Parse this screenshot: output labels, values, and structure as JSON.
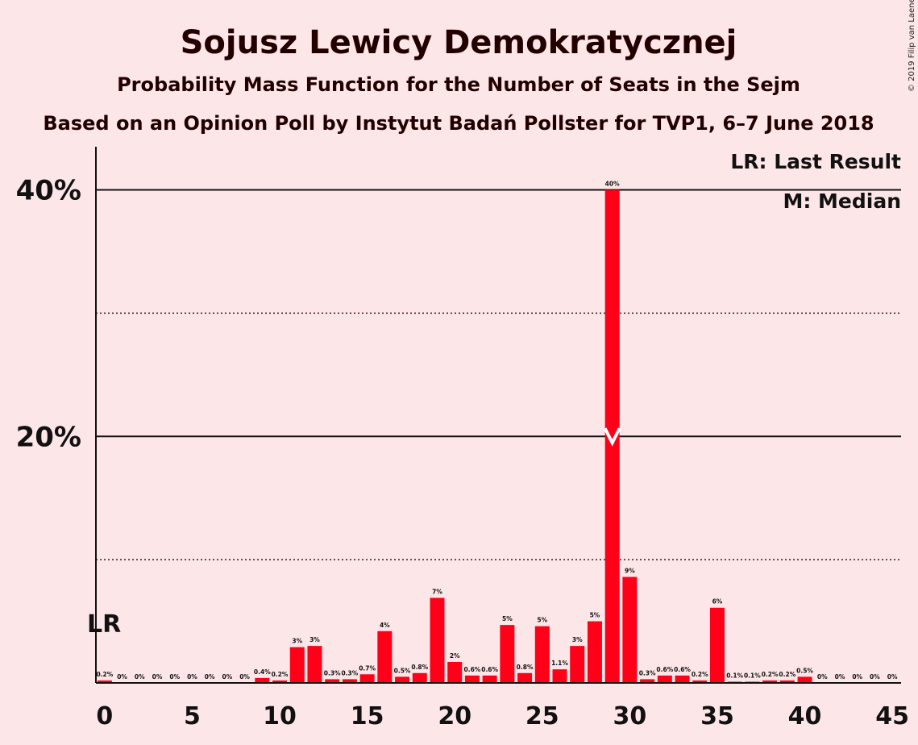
{
  "copyright": "© 2019 Filip van Laenen",
  "chart_data": {
    "type": "bar",
    "title": "Sojusz Lewicy Demokratycznej",
    "subtitle": "Probability Mass Function for the Number of Seats in the Sejm",
    "subtitle2": "Based on an Opinion Poll by Instytut Badań Pollster for TVP1, 6–7 June 2018",
    "x": [
      0,
      1,
      2,
      3,
      4,
      5,
      6,
      7,
      8,
      9,
      10,
      11,
      12,
      13,
      14,
      15,
      16,
      17,
      18,
      19,
      20,
      21,
      22,
      23,
      24,
      25,
      26,
      27,
      28,
      29,
      30,
      31,
      32,
      33,
      34,
      35,
      36,
      37,
      38,
      39,
      40,
      41,
      42,
      43,
      44,
      45
    ],
    "values": [
      0.2,
      0,
      0,
      0,
      0,
      0,
      0,
      0,
      0,
      0.4,
      0.2,
      2.9,
      3.0,
      0.3,
      0.3,
      0.7,
      4.2,
      0.5,
      0.8,
      6.9,
      1.7,
      0.6,
      0.6,
      4.7,
      0.8,
      4.6,
      1.1,
      3.0,
      5.0,
      40.0,
      8.6,
      0.3,
      0.6,
      0.6,
      0.2,
      6.1,
      0.1,
      0.1,
      0.2,
      0.2,
      0.5,
      0,
      0,
      0,
      0,
      0
    ],
    "value_labels": [
      "0.2%",
      "0%",
      "0%",
      "0%",
      "0%",
      "0%",
      "0%",
      "0%",
      "0%",
      "0.4%",
      "0.2%",
      "3%",
      "3%",
      "0.3%",
      "0.3%",
      "0.7%",
      "4%",
      "0.5%",
      "0.8%",
      "7%",
      "2%",
      "0.6%",
      "0.6%",
      "5%",
      "0.8%",
      "5%",
      "1.1%",
      "3%",
      "5%",
      "40%",
      "9%",
      "0.3%",
      "0.6%",
      "0.6%",
      "0.2%",
      "6%",
      "0.1%",
      "0.1%",
      "0.2%",
      "0.2%",
      "0.5%",
      "0%",
      "0%",
      "0%",
      "0%",
      "0%"
    ],
    "xticks": [
      0,
      5,
      10,
      15,
      20,
      25,
      30,
      35,
      40,
      45
    ],
    "xtick_labels": [
      "0",
      "5",
      "10",
      "15",
      "20",
      "25",
      "30",
      "35",
      "40",
      "45"
    ],
    "yticks": [
      20,
      40
    ],
    "ytick_labels": [
      "20%",
      "40%"
    ],
    "ylim": [
      0,
      43.5
    ],
    "xlim": [
      -0.5,
      45.5
    ],
    "grid_solid": [
      20,
      40
    ],
    "grid_dotted": [
      10,
      30
    ],
    "last_result_seat": 0,
    "median_seat": 29,
    "lr_marker_label": "LR",
    "legend": [
      "LR: Last Result",
      "M: Median"
    ],
    "legend_position": "top-right",
    "colors": {
      "bar": "#FF0018",
      "background": "#FDE6E8",
      "text": "#220000"
    }
  }
}
